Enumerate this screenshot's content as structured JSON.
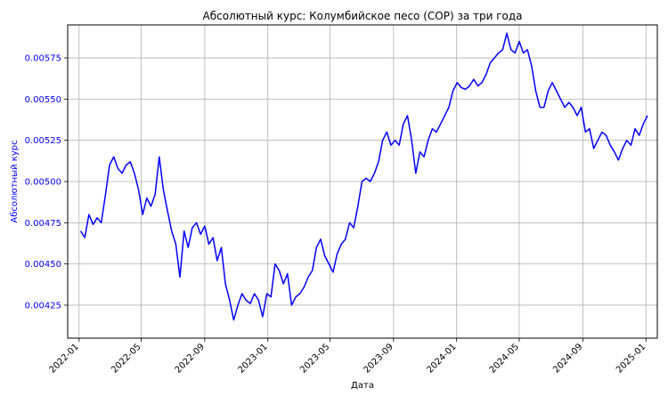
{
  "chart_data": {
    "type": "line",
    "title": "Абсолютный курс: Колумбийское песо (COP) за три года",
    "xlabel": "Дата",
    "ylabel": "Абсолютный курс",
    "x_ticks": [
      "2022-01",
      "2022-05",
      "2022-09",
      "2023-01",
      "2023-05",
      "2023-09",
      "2024-01",
      "2024-05",
      "2024-09",
      "2025-01"
    ],
    "y_ticks": [
      "0.00425",
      "0.00450",
      "0.00475",
      "0.00500",
      "0.00525",
      "0.00550",
      "0.00575"
    ],
    "xlim": [
      "2021-12-10",
      "2025-01-23"
    ],
    "ylim": [
      0.00405,
      0.00595
    ],
    "grid": true,
    "colors": {
      "line": "#0000ff",
      "ylabel": "#0000ff",
      "yticks": "#0000ff",
      "text": "#000000",
      "grid": "#b0b0b0"
    },
    "series": [
      {
        "x": [
          "2022-01-04",
          "2022-01-12",
          "2022-01-20",
          "2022-01-28",
          "2022-02-05",
          "2022-02-13",
          "2022-02-21",
          "2022-03-01",
          "2022-03-09",
          "2022-03-17",
          "2022-03-25",
          "2022-04-02",
          "2022-04-10",
          "2022-04-18",
          "2022-04-26",
          "2022-05-04",
          "2022-05-12",
          "2022-05-20",
          "2022-05-28",
          "2022-06-05",
          "2022-06-13",
          "2022-06-21",
          "2022-06-29",
          "2022-07-07",
          "2022-07-15",
          "2022-07-23",
          "2022-07-31",
          "2022-08-08",
          "2022-08-16",
          "2022-08-24",
          "2022-09-01",
          "2022-09-09",
          "2022-09-17",
          "2022-09-25",
          "2022-10-03",
          "2022-10-11",
          "2022-10-19",
          "2022-10-27",
          "2022-11-04",
          "2022-11-12",
          "2022-11-20",
          "2022-11-28",
          "2022-12-06",
          "2022-12-14",
          "2022-12-22",
          "2022-12-30",
          "2023-01-07",
          "2023-01-15",
          "2023-01-23",
          "2023-01-31",
          "2023-02-08",
          "2023-02-16",
          "2023-02-24",
          "2023-03-04",
          "2023-03-12",
          "2023-03-20",
          "2023-03-28",
          "2023-04-05",
          "2023-04-13",
          "2023-04-21",
          "2023-04-29",
          "2023-05-07",
          "2023-05-15",
          "2023-05-23",
          "2023-05-31",
          "2023-06-08",
          "2023-06-16",
          "2023-06-24",
          "2023-07-02",
          "2023-07-10",
          "2023-07-18",
          "2023-07-26",
          "2023-08-03",
          "2023-08-11",
          "2023-08-19",
          "2023-08-27",
          "2023-09-04",
          "2023-09-12",
          "2023-09-20",
          "2023-09-28",
          "2023-10-06",
          "2023-10-14",
          "2023-10-22",
          "2023-10-30",
          "2023-11-07",
          "2023-11-15",
          "2023-11-23",
          "2023-12-01",
          "2023-12-09",
          "2023-12-17",
          "2023-12-25",
          "2024-01-02",
          "2024-01-10",
          "2024-01-18",
          "2024-01-26",
          "2024-02-03",
          "2024-02-11",
          "2024-02-19",
          "2024-02-27",
          "2024-03-06",
          "2024-03-14",
          "2024-03-22",
          "2024-03-30",
          "2024-04-07",
          "2024-04-15",
          "2024-04-23",
          "2024-05-01",
          "2024-05-09",
          "2024-05-17",
          "2024-05-25",
          "2024-06-02",
          "2024-06-10",
          "2024-06-18",
          "2024-06-26",
          "2024-07-04",
          "2024-07-12",
          "2024-07-20",
          "2024-07-28",
          "2024-08-05",
          "2024-08-13",
          "2024-08-21",
          "2024-08-29",
          "2024-09-06",
          "2024-09-14",
          "2024-09-22",
          "2024-09-30",
          "2024-10-08",
          "2024-10-16",
          "2024-10-24",
          "2024-11-01",
          "2024-11-09",
          "2024-11-17",
          "2024-11-25",
          "2024-12-03",
          "2024-12-11",
          "2024-12-19",
          "2024-12-27",
          "2025-01-04"
        ],
        "y": [
          0.0047,
          0.00466,
          0.0048,
          0.00474,
          0.00478,
          0.00475,
          0.00492,
          0.0051,
          0.00515,
          0.00508,
          0.00505,
          0.0051,
          0.00512,
          0.00505,
          0.00495,
          0.0048,
          0.0049,
          0.00485,
          0.00492,
          0.00515,
          0.00495,
          0.00482,
          0.0047,
          0.00462,
          0.00442,
          0.0047,
          0.0046,
          0.00472,
          0.00475,
          0.00468,
          0.00473,
          0.00462,
          0.00466,
          0.00452,
          0.0046,
          0.00438,
          0.00428,
          0.00416,
          0.00425,
          0.00432,
          0.00428,
          0.00426,
          0.00432,
          0.00428,
          0.00418,
          0.00432,
          0.0043,
          0.0045,
          0.00446,
          0.00438,
          0.00444,
          0.00425,
          0.0043,
          0.00432,
          0.00436,
          0.00442,
          0.00446,
          0.0046,
          0.00465,
          0.00455,
          0.0045,
          0.00445,
          0.00456,
          0.00462,
          0.00465,
          0.00475,
          0.00472,
          0.00485,
          0.005,
          0.00502,
          0.005,
          0.00505,
          0.00512,
          0.00525,
          0.0053,
          0.00522,
          0.00525,
          0.00522,
          0.00535,
          0.0054,
          0.00525,
          0.00505,
          0.00518,
          0.00515,
          0.00525,
          0.00532,
          0.0053,
          0.00535,
          0.0054,
          0.00545,
          0.00555,
          0.0056,
          0.00557,
          0.00556,
          0.00558,
          0.00562,
          0.00558,
          0.0056,
          0.00565,
          0.00572,
          0.00575,
          0.00578,
          0.0058,
          0.0059,
          0.0058,
          0.00578,
          0.00585,
          0.00578,
          0.0058,
          0.0057,
          0.00555,
          0.00545,
          0.00545,
          0.00555,
          0.0056,
          0.00555,
          0.0055,
          0.00545,
          0.00548,
          0.00545,
          0.0054,
          0.00545,
          0.0053,
          0.00532,
          0.0052,
          0.00525,
          0.0053,
          0.00528,
          0.00522,
          0.00518,
          0.00513,
          0.0052,
          0.00525,
          0.00522,
          0.00532,
          0.00528,
          0.00535,
          0.0054
        ]
      }
    ]
  }
}
